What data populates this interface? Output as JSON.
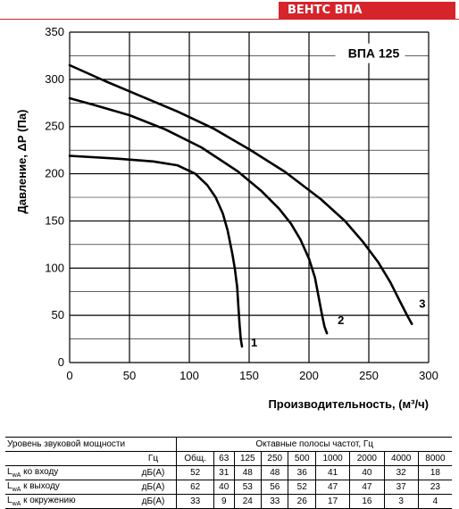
{
  "brand": "ВЕНТС ВПА",
  "chart_data": {
    "type": "line",
    "model_label": "ВПА 125",
    "xlabel": "Производительность, (м³/ч)",
    "ylabel": "Давление, ΔР (Па)",
    "xlim": [
      0,
      300
    ],
    "ylim": [
      0,
      350
    ],
    "x_ticks": [
      0,
      50,
      100,
      150,
      200,
      250,
      300
    ],
    "y_ticks": [
      0,
      50,
      100,
      150,
      200,
      250,
      300,
      350
    ],
    "grid": true,
    "series": [
      {
        "name": "1",
        "points": [
          [
            0,
            219
          ],
          [
            40,
            216
          ],
          [
            70,
            213
          ],
          [
            90,
            209
          ],
          [
            105,
            200
          ],
          [
            115,
            188
          ],
          [
            122,
            175
          ],
          [
            128,
            158
          ],
          [
            132,
            140
          ],
          [
            136,
            115
          ],
          [
            138,
            100
          ],
          [
            140,
            80
          ],
          [
            141,
            60
          ],
          [
            142,
            40
          ],
          [
            143,
            25
          ],
          [
            144,
            17
          ]
        ]
      },
      {
        "name": "2",
        "points": [
          [
            0,
            280
          ],
          [
            20,
            273
          ],
          [
            50,
            262
          ],
          [
            80,
            247
          ],
          [
            110,
            228
          ],
          [
            140,
            203
          ],
          [
            160,
            182
          ],
          [
            175,
            163
          ],
          [
            185,
            147
          ],
          [
            193,
            130
          ],
          [
            200,
            110
          ],
          [
            205,
            90
          ],
          [
            208,
            70
          ],
          [
            211,
            50
          ],
          [
            213,
            38
          ],
          [
            215,
            31
          ]
        ]
      },
      {
        "name": "3",
        "points": [
          [
            0,
            315
          ],
          [
            30,
            298
          ],
          [
            60,
            282
          ],
          [
            90,
            266
          ],
          [
            120,
            248
          ],
          [
            150,
            226
          ],
          [
            180,
            202
          ],
          [
            210,
            173
          ],
          [
            230,
            150
          ],
          [
            245,
            128
          ],
          [
            258,
            106
          ],
          [
            268,
            85
          ],
          [
            276,
            65
          ],
          [
            282,
            50
          ],
          [
            286,
            41
          ]
        ]
      }
    ]
  },
  "table": {
    "header_left": "Уровень звуковой мощности",
    "header_right": "Октавные полосы частот, Гц",
    "unit_hz": "Гц",
    "col_total": "Общ.",
    "freqs": [
      "63",
      "125",
      "250",
      "500",
      "1000",
      "2000",
      "4000",
      "8000"
    ],
    "rows": [
      {
        "label_sym": "L",
        "label_sub": "wA",
        "label_text": " ко входу",
        "unit": "дБ(А)",
        "values": [
          "52",
          "31",
          "48",
          "48",
          "36",
          "41",
          "40",
          "32",
          "18"
        ]
      },
      {
        "label_sym": "L",
        "label_sub": "wA",
        "label_text": " к выходу",
        "unit": "дБ(А)",
        "values": [
          "62",
          "40",
          "53",
          "56",
          "52",
          "47",
          "47",
          "37",
          "23"
        ]
      },
      {
        "label_sym": "L",
        "label_sub": "wA",
        "label_text": " к окружению",
        "unit": "дБ(А)",
        "values": [
          "33",
          "9",
          "24",
          "33",
          "26",
          "17",
          "16",
          "3",
          "4"
        ]
      }
    ]
  }
}
